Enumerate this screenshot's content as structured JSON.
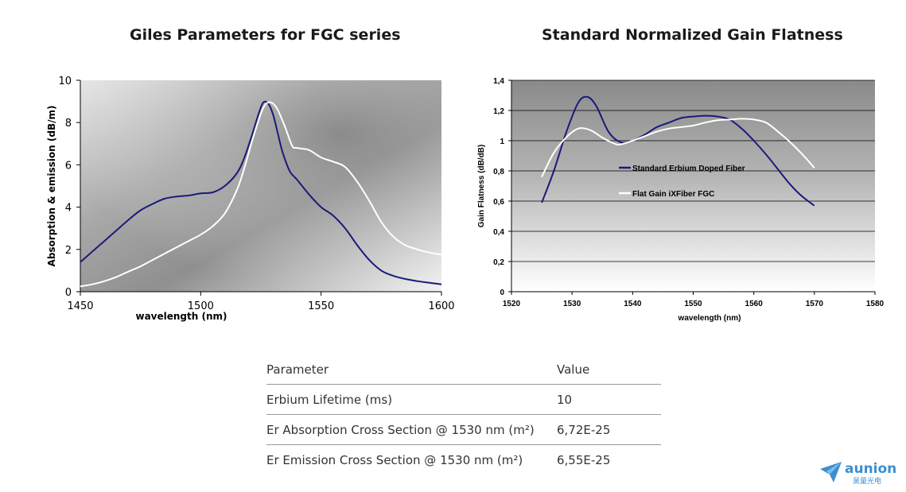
{
  "chart_data": [
    {
      "type": "line",
      "title": "Giles Parameters for FGC series",
      "xlabel": "wavelength (nm)",
      "ylabel": "Absorption & emission (dB/m)",
      "xlim": [
        1450,
        1600
      ],
      "ylim": [
        0,
        10
      ],
      "xticks": [
        1450,
        1500,
        1550,
        1600
      ],
      "yticks": [
        0,
        2,
        4,
        6,
        8,
        10
      ],
      "grid": false,
      "background": "gradient-gray",
      "series": [
        {
          "color": "#1a1a7a",
          "x": [
            1450,
            1455,
            1460,
            1465,
            1470,
            1475,
            1480,
            1485,
            1490,
            1495,
            1500,
            1505,
            1510,
            1515,
            1518,
            1521,
            1524,
            1526,
            1528,
            1530,
            1532,
            1534,
            1537,
            1540,
            1545,
            1550,
            1555,
            1560,
            1565,
            1570,
            1575,
            1580,
            1585,
            1590,
            1595,
            1600
          ],
          "values": [
            1.4,
            1.9,
            2.4,
            2.9,
            3.4,
            3.85,
            4.15,
            4.4,
            4.5,
            4.55,
            4.65,
            4.7,
            5.0,
            5.6,
            6.3,
            7.3,
            8.4,
            8.95,
            8.9,
            8.4,
            7.5,
            6.6,
            5.7,
            5.3,
            4.6,
            4.0,
            3.6,
            3.0,
            2.2,
            1.5,
            1.0,
            0.75,
            0.6,
            0.5,
            0.42,
            0.35
          ]
        },
        {
          "color": "#ffffff",
          "x": [
            1450,
            1455,
            1460,
            1465,
            1470,
            1475,
            1480,
            1485,
            1490,
            1495,
            1500,
            1505,
            1510,
            1515,
            1518,
            1521,
            1524,
            1526,
            1528,
            1530,
            1532,
            1535,
            1538,
            1540,
            1545,
            1550,
            1555,
            1560,
            1565,
            1570,
            1575,
            1580,
            1585,
            1590,
            1595,
            1600
          ],
          "values": [
            0.25,
            0.35,
            0.5,
            0.7,
            0.95,
            1.2,
            1.5,
            1.8,
            2.1,
            2.4,
            2.7,
            3.1,
            3.7,
            4.8,
            5.8,
            7.0,
            8.1,
            8.7,
            8.95,
            8.9,
            8.6,
            7.8,
            6.9,
            6.8,
            6.7,
            6.35,
            6.15,
            5.9,
            5.2,
            4.3,
            3.3,
            2.6,
            2.2,
            2.0,
            1.85,
            1.75
          ]
        }
      ]
    },
    {
      "type": "line",
      "title": "Standard Normalized Gain Flatness",
      "xlabel": "wavelength (nm)",
      "ylabel": "Gain Flatness (dB/dB)",
      "xlim": [
        1520,
        1580
      ],
      "ylim": [
        0,
        1.4
      ],
      "xticks": [
        1520,
        1530,
        1540,
        1550,
        1560,
        1570,
        1580
      ],
      "yticks": [
        "0",
        "0,2",
        "0,4",
        "0,6",
        "0,8",
        "1",
        "1,2",
        "1,4"
      ],
      "yticks_values": [
        0,
        0.2,
        0.4,
        0.6,
        0.8,
        1.0,
        1.2,
        1.4
      ],
      "grid": true,
      "legend": "inside-center",
      "background": "gradient-gray",
      "series": [
        {
          "name": "Standard Erbium Doped Fiber",
          "color": "#1a1a7a",
          "x": [
            1525,
            1527,
            1529,
            1531,
            1532.5,
            1534,
            1536,
            1538,
            1540,
            1542,
            1544,
            1546,
            1548,
            1550,
            1552,
            1554,
            1556,
            1558,
            1560,
            1562,
            1564,
            1566,
            1568,
            1570
          ],
          "values": [
            0.59,
            0.8,
            1.05,
            1.25,
            1.29,
            1.23,
            1.06,
            0.99,
            1.0,
            1.04,
            1.09,
            1.12,
            1.15,
            1.16,
            1.165,
            1.16,
            1.14,
            1.08,
            1.0,
            0.91,
            0.81,
            0.71,
            0.63,
            0.57
          ]
        },
        {
          "name": "Flat Gain iXFiber FGC",
          "color": "#ffffff",
          "x": [
            1525,
            1527,
            1529,
            1531,
            1533,
            1535,
            1537,
            1538,
            1540,
            1542,
            1544,
            1546,
            1548,
            1550,
            1552,
            1554,
            1556,
            1558,
            1560,
            1562,
            1564,
            1566,
            1568,
            1570
          ],
          "values": [
            0.76,
            0.92,
            1.02,
            1.08,
            1.07,
            1.02,
            0.98,
            0.975,
            1.0,
            1.03,
            1.06,
            1.08,
            1.09,
            1.1,
            1.12,
            1.135,
            1.14,
            1.145,
            1.14,
            1.12,
            1.06,
            0.99,
            0.91,
            0.82
          ]
        }
      ]
    }
  ],
  "table": {
    "headers": [
      "Parameter",
      "Value"
    ],
    "rows": [
      [
        "Erbium Lifetime (ms)",
        "10"
      ],
      [
        "Er Absorption Cross Section @ 1530 nm (m²)",
        "6,72E-25"
      ],
      [
        "Er Emission Cross Section @ 1530 nm (m²)",
        "6,55E-25"
      ]
    ]
  },
  "logo": {
    "name": "aunion",
    "subtitle": "昊量光电",
    "icon": "paper-plane-logo-icon",
    "color": "#3a8fd1"
  }
}
